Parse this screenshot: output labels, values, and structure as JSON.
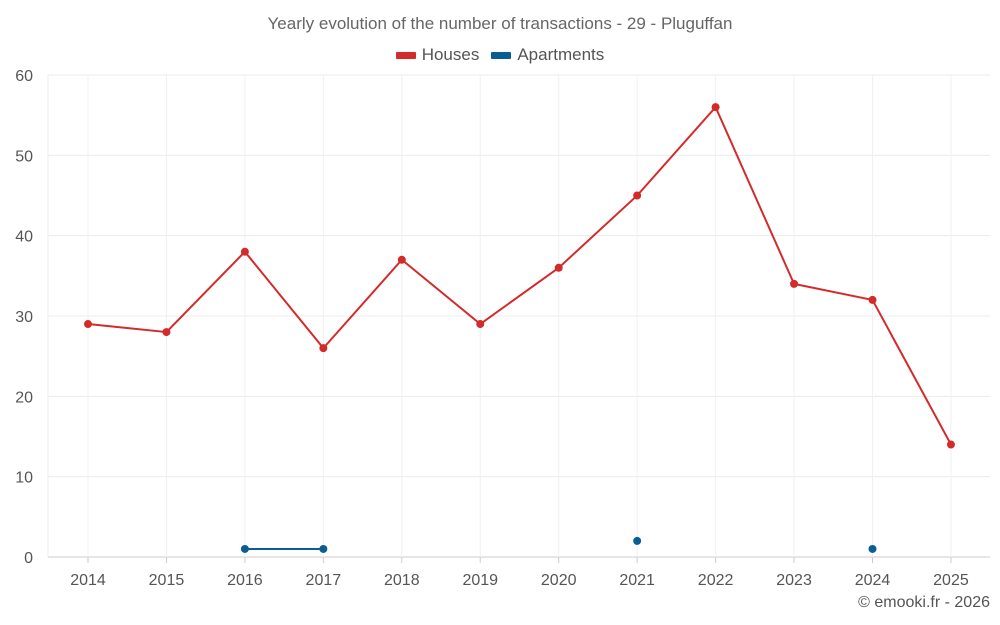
{
  "chart_data": {
    "type": "line",
    "title": "Yearly evolution of the number of transactions - 29 - Pluguffan",
    "categories": [
      "2014",
      "2015",
      "2016",
      "2017",
      "2018",
      "2019",
      "2020",
      "2021",
      "2022",
      "2023",
      "2024",
      "2025"
    ],
    "ylim": [
      0,
      60
    ],
    "yticks": [
      0,
      10,
      20,
      30,
      40,
      50,
      60
    ],
    "grid": true,
    "legend_position": "top-center",
    "series": [
      {
        "name": "Houses",
        "color": "#d42a2a",
        "values": [
          29,
          28,
          38,
          26,
          37,
          29,
          36,
          45,
          56,
          34,
          32,
          14
        ]
      },
      {
        "name": "Apartments",
        "color": "#0b5e94",
        "values": [
          null,
          null,
          1,
          1,
          null,
          null,
          null,
          2,
          null,
          null,
          1,
          null
        ]
      }
    ]
  },
  "footer": {
    "credit": "© emooki.fr - 2026"
  }
}
